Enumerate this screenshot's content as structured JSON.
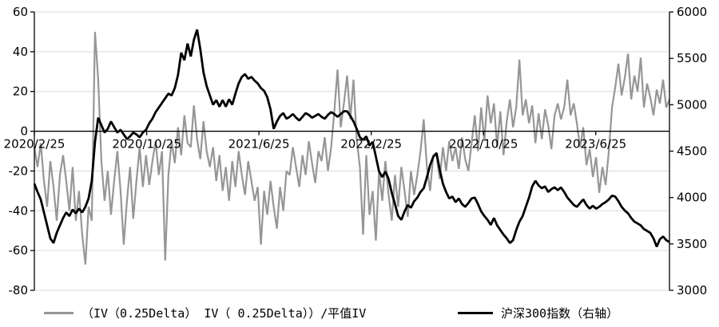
{
  "colors": {
    "iv_skew_line": "#969696",
    "index_line": "#000000",
    "grid_line": "#d9d9d9",
    "axis_line": "#000000",
    "text": "#000000",
    "background": "#ffffff"
  },
  "legend": {
    "iv_skew_label": "（IV（0.25Delta） IV（ 0.25Delta））/平值IV",
    "index_label": "沪深300指数（右轴）"
  },
  "chart_data": {
    "type": "line",
    "title": "",
    "xlabel": "",
    "ylabel_left": "",
    "ylabel_right": "",
    "grid": "horizontal-left-axis-ticks",
    "legend_position": "bottom",
    "x_axis": {
      "tick_labels": [
        "2020/2/25",
        "2020/10/25",
        "2021/6/25",
        "2022/2/25",
        "2022/10/25",
        "2023/6/25"
      ],
      "tick_months": [
        0,
        8,
        16,
        24,
        32,
        40
      ],
      "months_span": [
        0,
        45.25
      ],
      "note": "daily series, ticks every 8 months, labels drawn at left-axis zero line"
    },
    "left_axis": {
      "range": [
        -80,
        60
      ],
      "ticks": [
        60,
        40,
        20,
        0,
        -20,
        -40,
        -60,
        -80
      ],
      "zero_line": true
    },
    "right_axis": {
      "range": [
        3000,
        6000
      ],
      "ticks": [
        6000,
        5500,
        5000,
        4500,
        4000,
        3500,
        3000
      ]
    },
    "n_points": 200,
    "series": [
      {
        "name": "（IV（0.25Delta） IV（ 0.25Delta））/平值IV",
        "axis": "left",
        "color": "#969696",
        "stroke_width": 2.2,
        "values": [
          -8,
          -18,
          -6,
          -25,
          -38,
          -15,
          -28,
          -45,
          -22,
          -12,
          -25,
          -40,
          -18,
          -45,
          -30,
          -52,
          -67,
          -38,
          -45,
          50,
          26,
          -15,
          -35,
          -20,
          -42,
          -25,
          -10,
          -30,
          -57,
          -35,
          -18,
          -44,
          -25,
          -8,
          -28,
          -12,
          -27,
          -15,
          -5,
          -22,
          -10,
          -65,
          -22,
          -5,
          -16,
          2,
          -12,
          8,
          -6,
          -8,
          13,
          -4,
          -14,
          5,
          -10,
          -18,
          -8,
          -25,
          -12,
          -30,
          -18,
          -35,
          -15,
          -28,
          -10,
          -22,
          -32,
          -15,
          -25,
          -35,
          -28,
          -57,
          -30,
          -42,
          -25,
          -38,
          -49,
          -28,
          -40,
          -20,
          -22,
          -8,
          -18,
          -28,
          -12,
          -22,
          -5,
          -16,
          -26,
          -10,
          -15,
          -3,
          -20,
          -8,
          10,
          31,
          2,
          14,
          28,
          6,
          26,
          -4,
          -18,
          -52,
          -12,
          -42,
          -30,
          -55,
          -20,
          -35,
          -15,
          -32,
          -45,
          -22,
          -38,
          -18,
          -30,
          -43,
          -20,
          -32,
          -22,
          -10,
          6,
          -18,
          -30,
          -12,
          -12,
          -24,
          -8,
          -20,
          -5,
          -15,
          -8,
          -19,
          -3,
          -14,
          -20,
          -6,
          8,
          -10,
          12,
          -5,
          18,
          4,
          14,
          -8,
          10,
          -12,
          5,
          16,
          2,
          12,
          36,
          8,
          16,
          4,
          13,
          -6,
          9,
          -4,
          11,
          3,
          -9,
          8,
          14,
          6,
          12,
          26,
          8,
          14,
          4,
          -8,
          2,
          -17,
          -9,
          -23,
          -13,
          -31,
          -18,
          -27,
          -10,
          12,
          22,
          34,
          18,
          27,
          39,
          16,
          28,
          20,
          37,
          12,
          24,
          17,
          8,
          21,
          14,
          26,
          12,
          16
        ]
      },
      {
        "name": "沪深300指数（右轴）",
        "axis": "right",
        "color": "#000000",
        "stroke_width": 2.8,
        "values": [
          4150,
          4060,
          3980,
          3840,
          3700,
          3560,
          3510,
          3620,
          3700,
          3780,
          3840,
          3800,
          3870,
          3830,
          3880,
          3840,
          3900,
          3990,
          4180,
          4600,
          4860,
          4780,
          4700,
          4740,
          4820,
          4760,
          4700,
          4730,
          4680,
          4630,
          4660,
          4700,
          4680,
          4650,
          4700,
          4730,
          4800,
          4850,
          4920,
          4970,
          5020,
          5070,
          5120,
          5100,
          5180,
          5320,
          5560,
          5480,
          5660,
          5520,
          5700,
          5810,
          5600,
          5350,
          5200,
          5100,
          5000,
          5050,
          4980,
          5050,
          4980,
          5060,
          5000,
          5120,
          5230,
          5300,
          5330,
          5280,
          5300,
          5260,
          5230,
          5180,
          5150,
          5080,
          4950,
          4740,
          4820,
          4880,
          4910,
          4850,
          4870,
          4900,
          4860,
          4830,
          4870,
          4910,
          4890,
          4860,
          4880,
          4900,
          4870,
          4850,
          4890,
          4920,
          4900,
          4870,
          4900,
          4930,
          4930,
          4880,
          4820,
          4740,
          4650,
          4620,
          4660,
          4560,
          4600,
          4440,
          4280,
          4220,
          4280,
          4200,
          4050,
          3930,
          3800,
          3760,
          3850,
          3920,
          3890,
          3960,
          4000,
          4060,
          4100,
          4220,
          4350,
          4440,
          4480,
          4300,
          4150,
          4060,
          3990,
          4010,
          3950,
          3990,
          3930,
          3900,
          3940,
          3990,
          4000,
          3930,
          3850,
          3800,
          3760,
          3705,
          3780,
          3700,
          3650,
          3600,
          3560,
          3510,
          3540,
          3650,
          3740,
          3800,
          3900,
          4000,
          4120,
          4180,
          4130,
          4100,
          4120,
          4060,
          4090,
          4110,
          4080,
          4110,
          4060,
          4000,
          3960,
          3920,
          3900,
          3940,
          3980,
          3920,
          3880,
          3910,
          3880,
          3900,
          3930,
          3950,
          3980,
          4020,
          4010,
          3960,
          3900,
          3860,
          3830,
          3780,
          3740,
          3720,
          3700,
          3660,
          3640,
          3620,
          3560,
          3470,
          3550,
          3580,
          3540,
          3520
        ]
      }
    ]
  }
}
